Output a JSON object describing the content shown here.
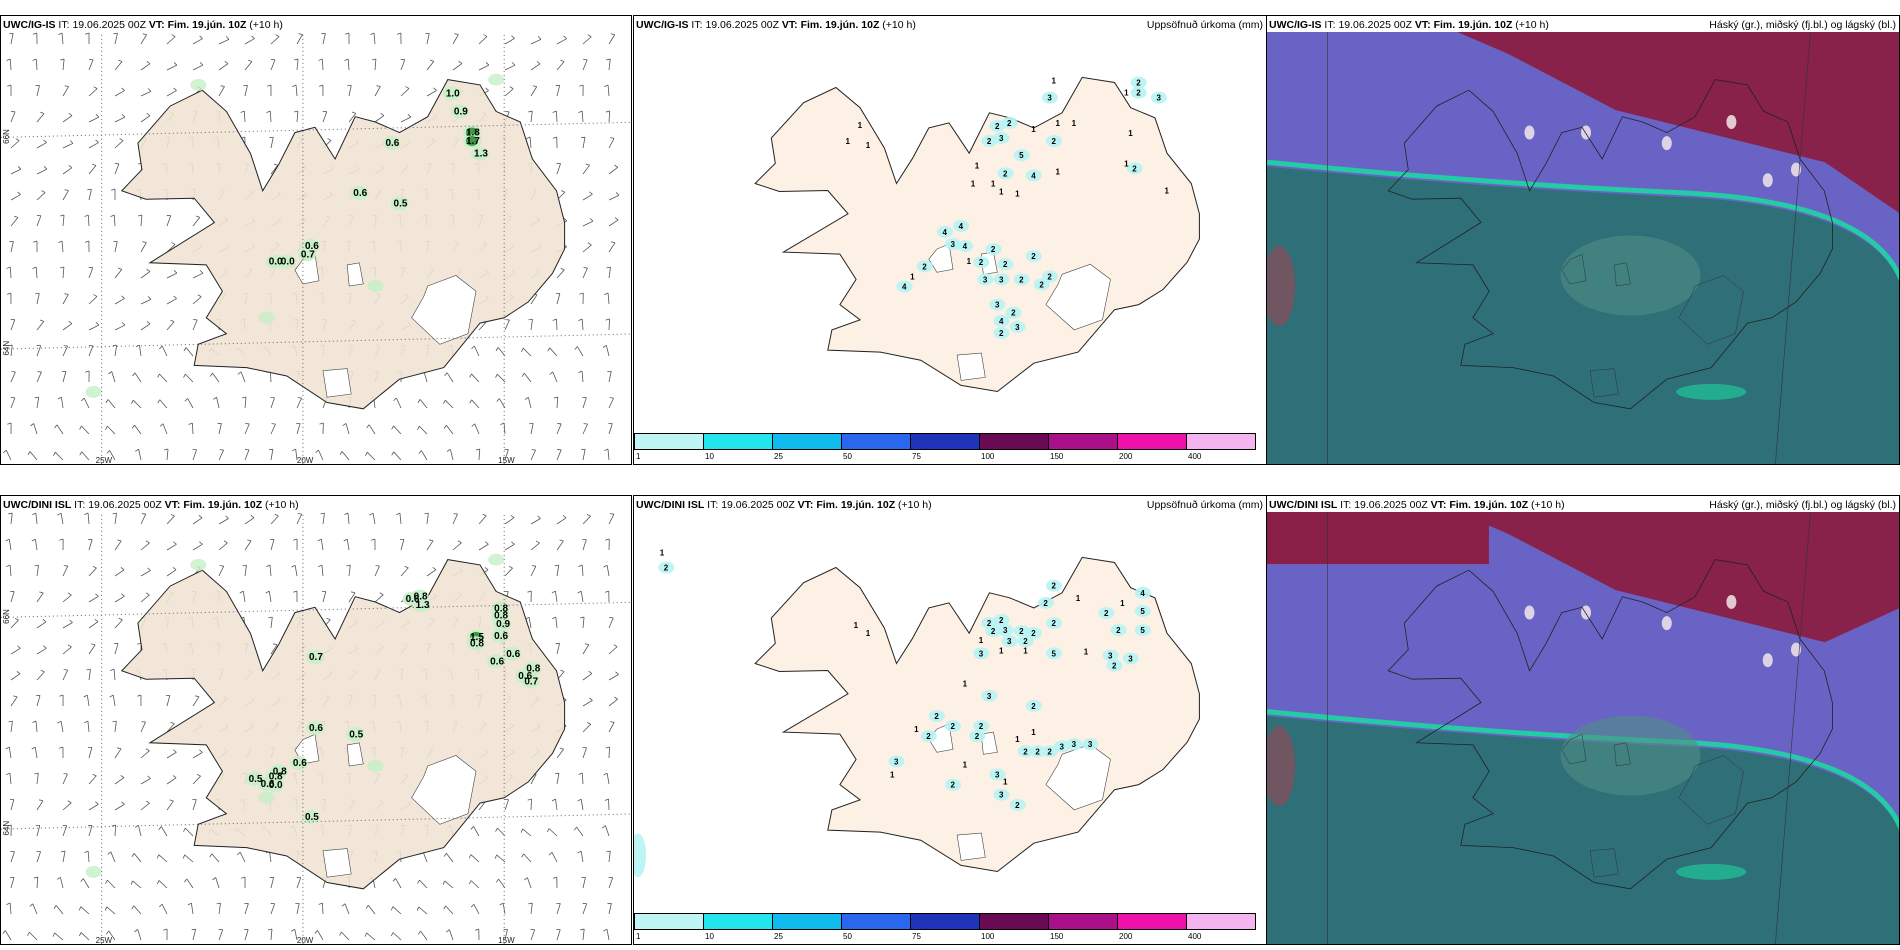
{
  "rows": [
    {
      "model": "UWC/IG-IS",
      "it_prefix": "IT:",
      "it_value": "19.06.2025 00Z",
      "vt_prefix": "VT:",
      "vt_value": "Fim. 19.jún. 10Z",
      "lead": "(+10 h)",
      "wind_labels": [
        {
          "t": "1.0",
          "x": -16.3,
          "y": 66.42
        },
        {
          "t": "0.9",
          "x": -16.1,
          "y": 66.25
        },
        {
          "t": "1.8",
          "x": -15.8,
          "y": 66.05
        },
        {
          "t": "1.7",
          "x": -15.8,
          "y": 65.97
        },
        {
          "t": "1.3",
          "x": -15.6,
          "y": 65.85
        },
        {
          "t": "0.6",
          "x": -17.8,
          "y": 65.95
        },
        {
          "t": "0.6",
          "x": -18.6,
          "y": 65.48
        },
        {
          "t": "0.5",
          "x": -17.6,
          "y": 65.38
        },
        {
          "t": "0.6",
          "x": -19.8,
          "y": 64.98
        },
        {
          "t": "0.7",
          "x": -19.9,
          "y": 64.9
        },
        {
          "t": "0.0",
          "x": -20.7,
          "y": 64.83
        },
        {
          "t": "0.0",
          "x": -20.4,
          "y": 64.83
        }
      ],
      "precip_labels": [
        {
          "t": "1",
          "x": -17.1,
          "y": 66.52
        },
        {
          "t": "3",
          "x": -17.2,
          "y": 66.35
        },
        {
          "t": "2",
          "x": -15.0,
          "y": 66.5
        },
        {
          "t": "2",
          "x": -15.0,
          "y": 66.4
        },
        {
          "t": "1",
          "x": -15.3,
          "y": 66.4
        },
        {
          "t": "3",
          "x": -14.5,
          "y": 66.35
        },
        {
          "t": "1",
          "x": -21.9,
          "y": 66.08
        },
        {
          "t": "2",
          "x": -18.5,
          "y": 66.07
        },
        {
          "t": "2",
          "x": -18.2,
          "y": 66.1
        },
        {
          "t": "1",
          "x": -17.6,
          "y": 66.04
        },
        {
          "t": "1",
          "x": -17.0,
          "y": 66.1
        },
        {
          "t": "1",
          "x": -16.6,
          "y": 66.1
        },
        {
          "t": "1",
          "x": -15.2,
          "y": 66.0
        },
        {
          "t": "2",
          "x": -18.7,
          "y": 65.92
        },
        {
          "t": "3",
          "x": -18.4,
          "y": 65.95
        },
        {
          "t": "2",
          "x": -17.1,
          "y": 65.92
        },
        {
          "t": "1",
          "x": -22.2,
          "y": 65.92
        },
        {
          "t": "1",
          "x": -21.7,
          "y": 65.88
        },
        {
          "t": "5",
          "x": -17.9,
          "y": 65.78
        },
        {
          "t": "1",
          "x": -19.0,
          "y": 65.68
        },
        {
          "t": "2",
          "x": -18.3,
          "y": 65.6
        },
        {
          "t": "4",
          "x": -17.6,
          "y": 65.58
        },
        {
          "t": "1",
          "x": -17.0,
          "y": 65.62
        },
        {
          "t": "1",
          "x": -18.6,
          "y": 65.5
        },
        {
          "t": "1",
          "x": -18.0,
          "y": 65.4
        },
        {
          "t": "1",
          "x": -18.4,
          "y": 65.42
        },
        {
          "t": "1",
          "x": -19.1,
          "y": 65.5
        },
        {
          "t": "1",
          "x": -15.3,
          "y": 65.7
        },
        {
          "t": "2",
          "x": -15.1,
          "y": 65.65
        },
        {
          "t": "1",
          "x": -14.3,
          "y": 65.43
        },
        {
          "t": "4",
          "x": -19.4,
          "y": 65.08
        },
        {
          "t": "4",
          "x": -19.8,
          "y": 65.02
        },
        {
          "t": "3",
          "x": -19.6,
          "y": 64.9
        },
        {
          "t": "4",
          "x": -19.3,
          "y": 64.88
        },
        {
          "t": "2",
          "x": -18.6,
          "y": 64.85
        },
        {
          "t": "2",
          "x": -17.6,
          "y": 64.78
        },
        {
          "t": "1",
          "x": -19.2,
          "y": 64.73
        },
        {
          "t": "2",
          "x": -18.9,
          "y": 64.72
        },
        {
          "t": "2",
          "x": -18.3,
          "y": 64.7
        },
        {
          "t": "3",
          "x": -18.8,
          "y": 64.55
        },
        {
          "t": "3",
          "x": -18.4,
          "y": 64.55
        },
        {
          "t": "2",
          "x": -17.9,
          "y": 64.55
        },
        {
          "t": "2",
          "x": -17.4,
          "y": 64.5
        },
        {
          "t": "2",
          "x": -17.2,
          "y": 64.58
        },
        {
          "t": "2",
          "x": -20.3,
          "y": 64.68
        },
        {
          "t": "1",
          "x": -20.6,
          "y": 64.58
        },
        {
          "t": "4",
          "x": -20.8,
          "y": 64.48
        },
        {
          "t": "3",
          "x": -18.5,
          "y": 64.3
        },
        {
          "t": "2",
          "x": -18.1,
          "y": 64.22
        },
        {
          "t": "4",
          "x": -18.4,
          "y": 64.14
        },
        {
          "t": "3",
          "x": -18.0,
          "y": 64.08
        },
        {
          "t": "2",
          "x": -18.4,
          "y": 64.02
        }
      ]
    },
    {
      "model": "UWC/DINI ISL",
      "it_prefix": "IT:",
      "it_value": "19.06.2025 00Z",
      "vt_prefix": "VT:",
      "vt_value": "Fim. 19.jún. 10Z",
      "lead": "(+10 h)",
      "wind_labels": [
        {
          "t": "0.6",
          "x": -17.3,
          "y": 66.18
        },
        {
          "t": "0.8",
          "x": -17.1,
          "y": 66.2
        },
        {
          "t": "1.3",
          "x": -17.05,
          "y": 66.12
        },
        {
          "t": "0.8",
          "x": -15.1,
          "y": 66.09
        },
        {
          "t": "0.8",
          "x": -15.1,
          "y": 66.02
        },
        {
          "t": "0.9",
          "x": -15.05,
          "y": 65.94
        },
        {
          "t": "1.5",
          "x": -15.7,
          "y": 65.82
        },
        {
          "t": "0.8",
          "x": -15.7,
          "y": 65.76
        },
        {
          "t": "0.6",
          "x": -15.1,
          "y": 65.83
        },
        {
          "t": "0.6",
          "x": -14.8,
          "y": 65.66
        },
        {
          "t": "0.6",
          "x": -15.2,
          "y": 65.59
        },
        {
          "t": "0.8",
          "x": -14.3,
          "y": 65.52
        },
        {
          "t": "0.6",
          "x": -14.5,
          "y": 65.45
        },
        {
          "t": "0.7",
          "x": -14.35,
          "y": 65.4
        },
        {
          "t": "0.7",
          "x": -19.7,
          "y": 65.63
        },
        {
          "t": "0.6",
          "x": -19.7,
          "y": 64.96
        },
        {
          "t": "0.5",
          "x": -18.7,
          "y": 64.9
        },
        {
          "t": "0.6",
          "x": -20.1,
          "y": 64.63
        },
        {
          "t": "0.8",
          "x": -20.6,
          "y": 64.55
        },
        {
          "t": "0.8",
          "x": -20.7,
          "y": 64.5
        },
        {
          "t": "0.5",
          "x": -21.2,
          "y": 64.48
        },
        {
          "t": "0.6",
          "x": -20.9,
          "y": 64.43
        },
        {
          "t": "0.0",
          "x": -20.7,
          "y": 64.42
        },
        {
          "t": "0.5",
          "x": -19.8,
          "y": 64.12
        }
      ],
      "precip_labels": [
        {
          "t": "1",
          "x": -26.8,
          "y": 66.6
        },
        {
          "t": "2",
          "x": -26.7,
          "y": 66.45
        },
        {
          "t": "2",
          "x": -17.1,
          "y": 66.27
        },
        {
          "t": "4",
          "x": -14.9,
          "y": 66.2
        },
        {
          "t": "1",
          "x": -16.5,
          "y": 66.15
        },
        {
          "t": "1",
          "x": -15.4,
          "y": 66.1
        },
        {
          "t": "2",
          "x": -17.3,
          "y": 66.1
        },
        {
          "t": "2",
          "x": -15.8,
          "y": 66.0
        },
        {
          "t": "5",
          "x": -14.9,
          "y": 66.02
        },
        {
          "t": "1",
          "x": -22.0,
          "y": 65.88
        },
        {
          "t": "1",
          "x": -21.7,
          "y": 65.8
        },
        {
          "t": "2",
          "x": -18.7,
          "y": 65.9
        },
        {
          "t": "2",
          "x": -17.1,
          "y": 65.9
        },
        {
          "t": "2",
          "x": -18.4,
          "y": 65.93
        },
        {
          "t": "2",
          "x": -15.5,
          "y": 65.83
        },
        {
          "t": "5",
          "x": -14.9,
          "y": 65.83
        },
        {
          "t": "2",
          "x": -18.6,
          "y": 65.82
        },
        {
          "t": "3",
          "x": -18.3,
          "y": 65.83
        },
        {
          "t": "2",
          "x": -17.9,
          "y": 65.82
        },
        {
          "t": "2",
          "x": -17.6,
          "y": 65.8
        },
        {
          "t": "1",
          "x": -18.9,
          "y": 65.73
        },
        {
          "t": "3",
          "x": -18.2,
          "y": 65.72
        },
        {
          "t": "2",
          "x": -17.8,
          "y": 65.72
        },
        {
          "t": "1",
          "x": -18.4,
          "y": 65.63
        },
        {
          "t": "1",
          "x": -17.8,
          "y": 65.63
        },
        {
          "t": "3",
          "x": -18.9,
          "y": 65.6
        },
        {
          "t": "1",
          "x": -16.3,
          "y": 65.62
        },
        {
          "t": "5",
          "x": -17.1,
          "y": 65.6
        },
        {
          "t": "3",
          "x": -15.7,
          "y": 65.58
        },
        {
          "t": "2",
          "x": -15.6,
          "y": 65.48
        },
        {
          "t": "3",
          "x": -15.2,
          "y": 65.55
        },
        {
          "t": "1",
          "x": -19.3,
          "y": 65.3
        },
        {
          "t": "3",
          "x": -18.7,
          "y": 65.18
        },
        {
          "t": "2",
          "x": -17.6,
          "y": 65.08
        },
        {
          "t": "2",
          "x": -20.0,
          "y": 64.98
        },
        {
          "t": "2",
          "x": -19.6,
          "y": 64.88
        },
        {
          "t": "2",
          "x": -18.9,
          "y": 64.88
        },
        {
          "t": "1",
          "x": -20.5,
          "y": 64.85
        },
        {
          "t": "2",
          "x": -20.2,
          "y": 64.78
        },
        {
          "t": "2",
          "x": -19.0,
          "y": 64.78
        },
        {
          "t": "1",
          "x": -17.6,
          "y": 64.82
        },
        {
          "t": "1",
          "x": -18.0,
          "y": 64.75
        },
        {
          "t": "2",
          "x": -17.5,
          "y": 64.63
        },
        {
          "t": "2",
          "x": -17.2,
          "y": 64.63
        },
        {
          "t": "3",
          "x": -16.9,
          "y": 64.68
        },
        {
          "t": "3",
          "x": -16.6,
          "y": 64.7
        },
        {
          "t": "3",
          "x": -16.2,
          "y": 64.7
        },
        {
          "t": "2",
          "x": -17.8,
          "y": 64.63
        },
        {
          "t": "3",
          "x": -21.0,
          "y": 64.53
        },
        {
          "t": "1",
          "x": -21.1,
          "y": 64.4
        },
        {
          "t": "1",
          "x": -19.3,
          "y": 64.5
        },
        {
          "t": "2",
          "x": -19.6,
          "y": 64.3
        },
        {
          "t": "3",
          "x": -18.5,
          "y": 64.4
        },
        {
          "t": "1",
          "x": -18.3,
          "y": 64.33
        },
        {
          "t": "3",
          "x": -18.4,
          "y": 64.2
        },
        {
          "t": "2",
          "x": -18.0,
          "y": 64.1
        }
      ]
    }
  ],
  "precip_title": "Uppsöfnuð úrkoma (mm)",
  "cloud_title": "Háský (gr.), miðský (fj.bl.) og lágský (bl.)",
  "axis": {
    "lat_labels": [
      {
        "t": "66N",
        "lat": 66.0
      },
      {
        "t": "64N",
        "lat": 64.0
      }
    ],
    "lon_labels": [
      {
        "t": "25W",
        "lon": -25.0
      },
      {
        "t": "20W",
        "lon": -20.0
      },
      {
        "t": "15W",
        "lon": -15.0
      }
    ]
  },
  "colorbar": {
    "ticks": [
      "1",
      "10",
      "25",
      "50",
      "75",
      "100",
      "150",
      "200",
      "400"
    ],
    "colors": [
      "#bff4f4",
      "#22e6ec",
      "#11bbee",
      "#2a66ee",
      "#2233bb",
      "#6a0a52",
      "#aa1188",
      "#ee11aa",
      "#f4b4f0"
    ]
  },
  "colors": {
    "land": "#efe3d3",
    "land_precip": "#fdf0e4",
    "cell_light": "#c6f0c6",
    "cell_dark": "#2e8f3a",
    "precip_light": "#b6f4f4",
    "cloud_high": "#8a1f45",
    "cloud_mid": "#6a63c6",
    "cloud_low": "#2f6f78",
    "cloud_low_band": "#1ed6a0",
    "cloud_snow": "#f2e6ea"
  }
}
